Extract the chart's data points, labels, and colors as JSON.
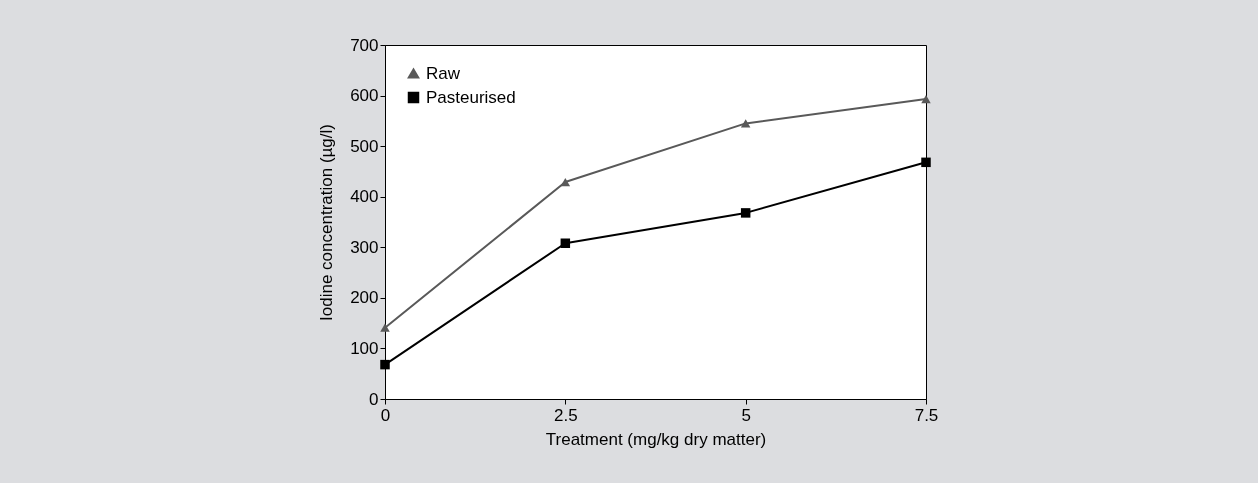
{
  "chart_data": {
    "type": "line",
    "xlabel": "Treatment (mg/kg dry matter)",
    "ylabel": "Iodine concentration (µg/l)",
    "x": [
      0,
      2.5,
      5,
      7.5
    ],
    "xlim": [
      0,
      7.5
    ],
    "xticks": [
      0,
      2.5,
      5,
      7.5
    ],
    "ylim": [
      0,
      700
    ],
    "yticks": [
      0,
      100,
      200,
      300,
      400,
      500,
      600,
      700
    ],
    "grid": false,
    "legend": "top left",
    "line_style": "solid",
    "series": [
      {
        "name": "Raw",
        "color": "#595959",
        "marker": "triangle",
        "values": [
          141,
          429,
          545,
          593
        ]
      },
      {
        "name": "Pasteurised",
        "color": "#000000",
        "marker": "square",
        "values": [
          68,
          308,
          368,
          468
        ]
      }
    ]
  }
}
